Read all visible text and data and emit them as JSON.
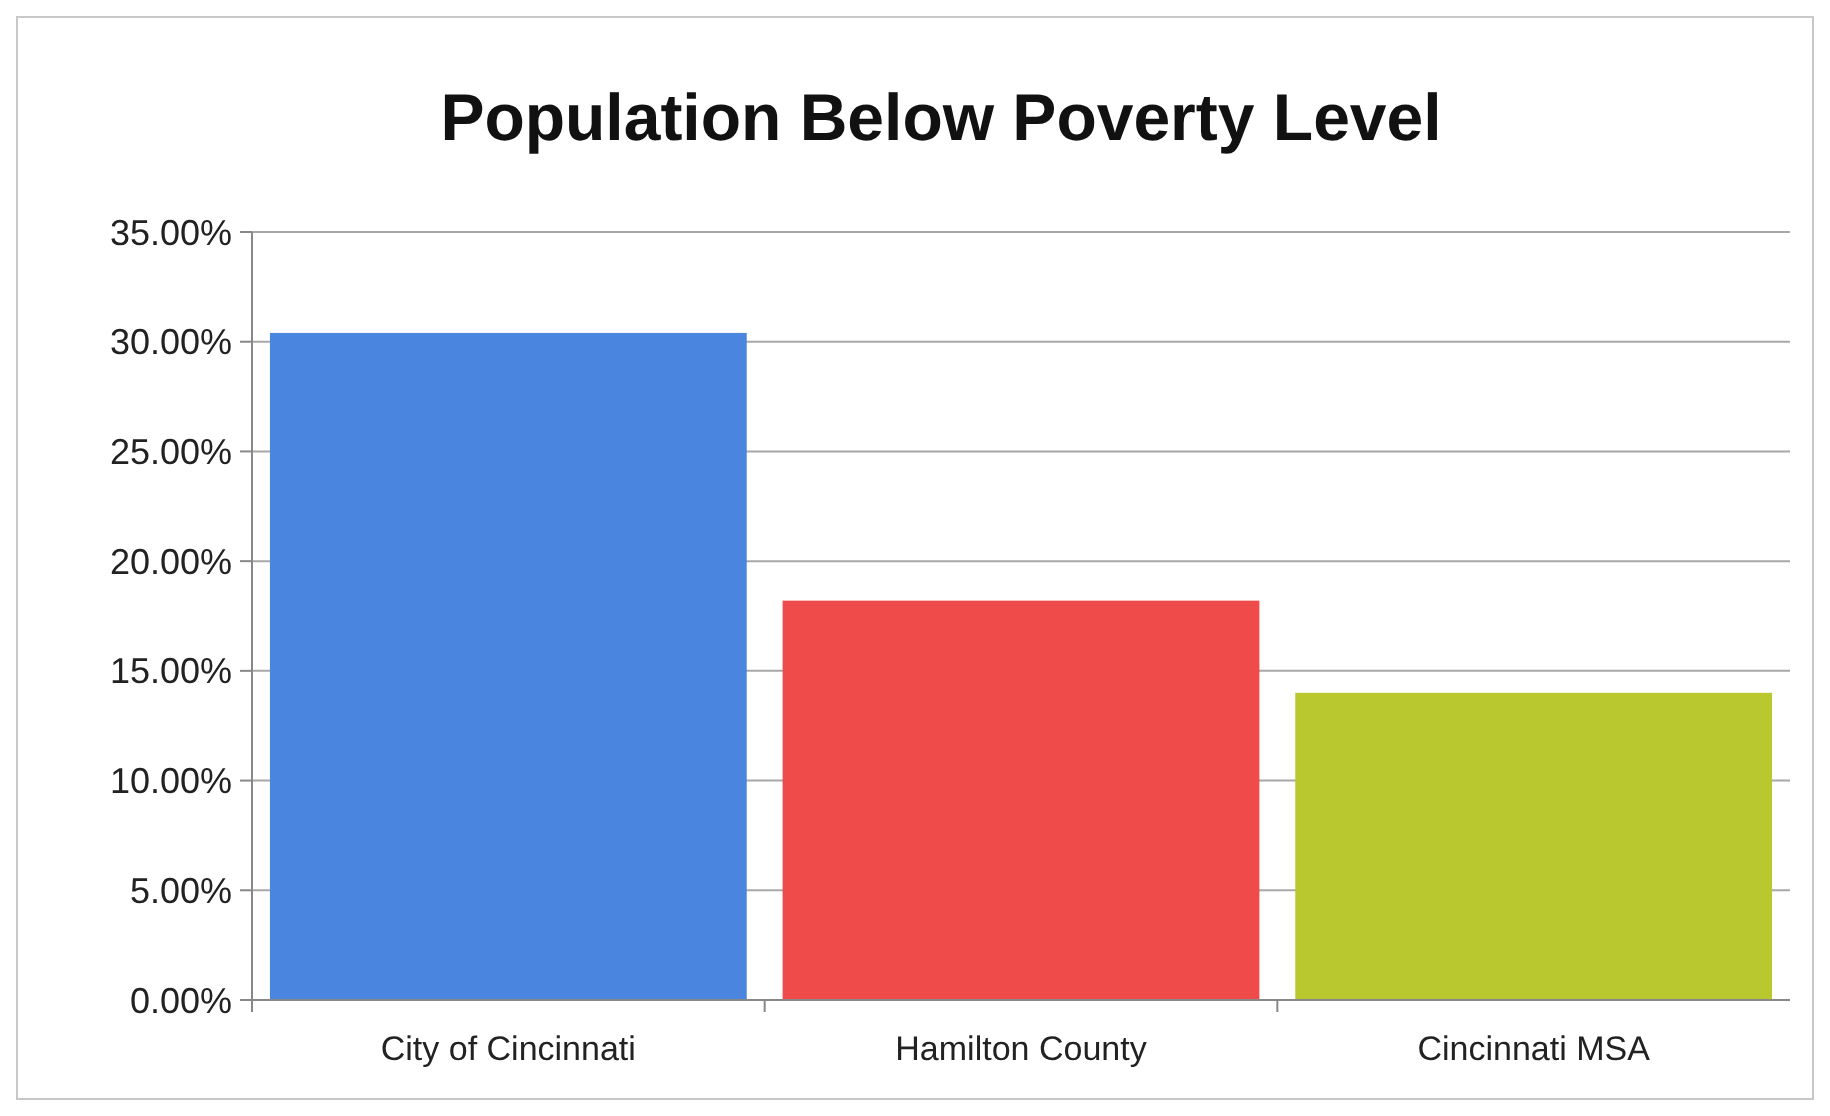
{
  "chart_data": {
    "type": "bar",
    "title": "Population Below Poverty Level",
    "categories": [
      "City of Cincinnati",
      "Hamilton County",
      "Cincinnati MSA"
    ],
    "values": [
      30.4,
      18.2,
      14.0
    ],
    "colors": [
      "#4a86e0",
      "#f04b4b",
      "#b9c82e"
    ],
    "ylim": [
      0,
      35
    ],
    "yticks": [
      {
        "value": 0,
        "label": "0.00%"
      },
      {
        "value": 5,
        "label": "5.00%"
      },
      {
        "value": 10,
        "label": "10.00%"
      },
      {
        "value": 15,
        "label": "15.00%"
      },
      {
        "value": 20,
        "label": "20.00%"
      },
      {
        "value": 25,
        "label": "25.00%"
      },
      {
        "value": 30,
        "label": "30.00%"
      },
      {
        "value": 35,
        "label": "35.00%"
      }
    ],
    "grid": true
  }
}
